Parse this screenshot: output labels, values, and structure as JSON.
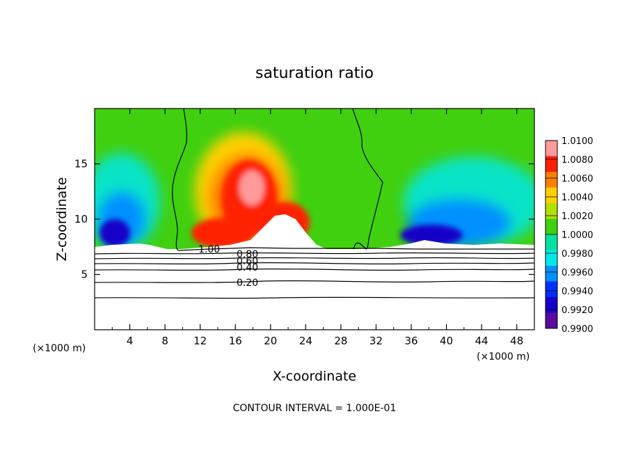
{
  "chart_data": {
    "type": "heatmap",
    "title": "saturation ratio",
    "xlabel": "X-coordinate",
    "ylabel": "Z-coordinate",
    "x_unit_label": "(×1000 m)",
    "xlim": [
      0,
      50
    ],
    "ylim": [
      0,
      20
    ],
    "x_ticks": [
      4,
      8,
      12,
      16,
      20,
      24,
      28,
      32,
      36,
      40,
      44,
      48
    ],
    "y_ticks": [
      5,
      10,
      15
    ],
    "footer": "CONTOUR INTERVAL = 1.000E-01",
    "colorbar": {
      "levels": [
        "0.9900",
        "0.9920",
        "0.9940",
        "0.9960",
        "0.9980",
        "1.0000",
        "1.0020",
        "1.0040",
        "1.0060",
        "1.0080",
        "1.0100"
      ],
      "colors": [
        "#5a0aa0",
        "#1800c8",
        "#0030ff",
        "#0090ff",
        "#00e8e8",
        "#00e0a0",
        "#40d010",
        "#b0e000",
        "#ffd000",
        "#ff8000",
        "#ff2000",
        "#ff9a9a"
      ]
    },
    "contour_labels": [
      {
        "text": "1.00",
        "x": 12.8,
        "z": 7.2
      },
      {
        "text": "0.80",
        "x": 17.5,
        "z": 6.9
      },
      {
        "text": "0.60",
        "x": 17.5,
        "z": 6.4
      },
      {
        "text": "0.40",
        "x": 17.5,
        "z": 5.5
      },
      {
        "text": "0.20",
        "x": 17.5,
        "z": 4.0
      }
    ]
  }
}
